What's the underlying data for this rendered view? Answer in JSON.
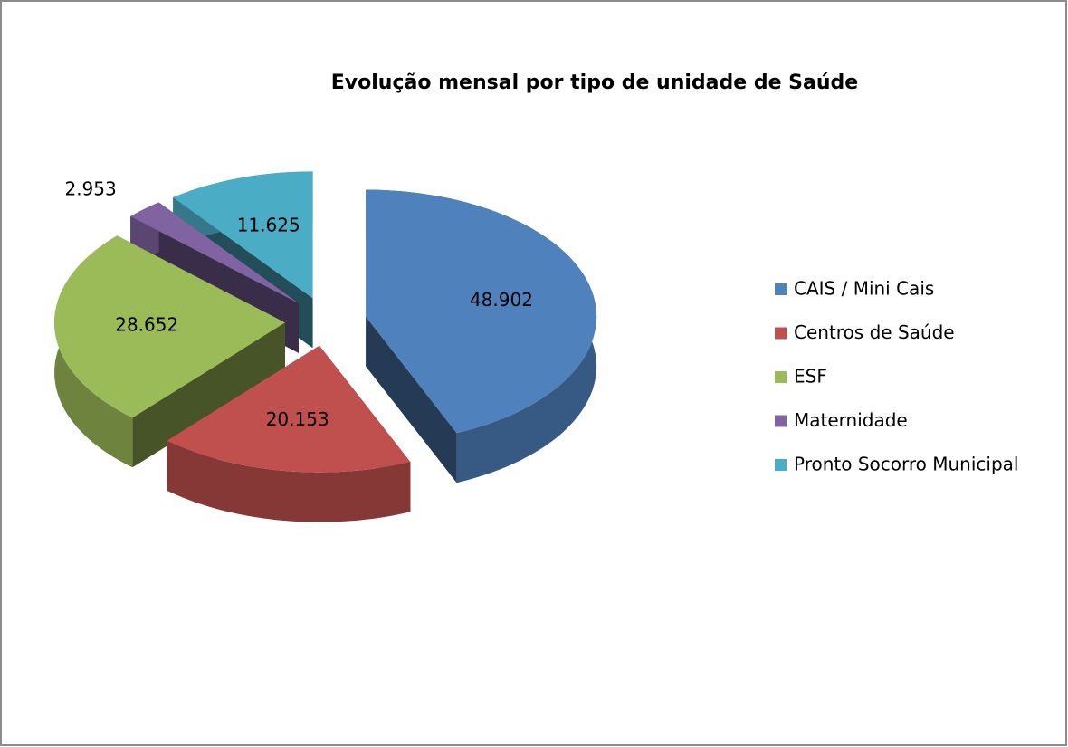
{
  "chart_data": {
    "type": "pie3d",
    "title": "Evolução mensal por tipo de unidade de Saúde",
    "categories": [
      "CAIS / Mini Cais",
      "Centros de Saúde",
      "ESF",
      "Maternidade",
      "Pronto Socorro Municipal"
    ],
    "values": [
      48902,
      20153,
      28652,
      2953,
      11625
    ],
    "value_labels": [
      "48.902",
      "20.153",
      "28.652",
      "2.953",
      "11.625"
    ],
    "colors": [
      "#4f81bd",
      "#c0504d",
      "#9bbb59",
      "#8064a2",
      "#4bacc6"
    ],
    "legend": "right"
  }
}
